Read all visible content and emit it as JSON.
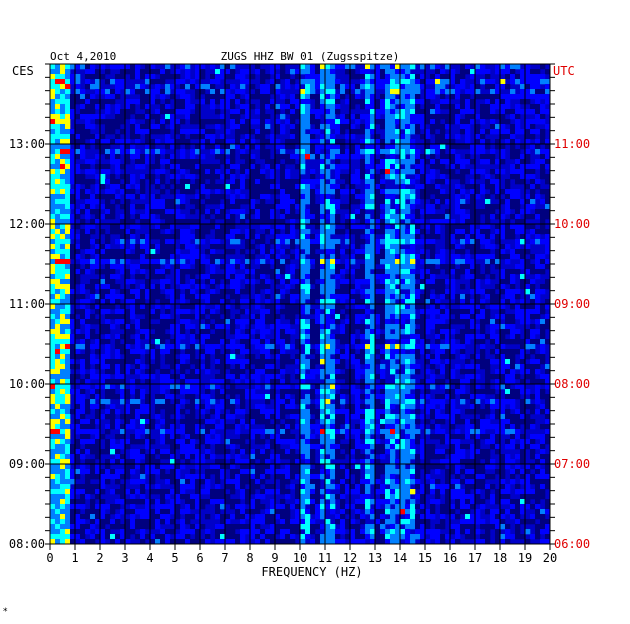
{
  "chart_data": {
    "type": "heatmap",
    "title": "ZUGS HHZ BW 01 (Zugsspitze)",
    "date": "Oct 4,2010",
    "xlabel": "FREQUENCY (HZ)",
    "left_timezone": "CES",
    "right_timezone": "UTC",
    "xlim": [
      0,
      20
    ],
    "x_ticks": [
      "0",
      "1",
      "2",
      "3",
      "4",
      "5",
      "6",
      "7",
      "8",
      "9",
      "10",
      "11",
      "12",
      "13",
      "14",
      "15",
      "16",
      "17",
      "18",
      "19",
      "20"
    ],
    "left_ticks": [
      "13:00",
      "12:00",
      "11:00",
      "10:00",
      "09:00",
      "08:00"
    ],
    "right_ticks": [
      "11:00",
      "10:00",
      "09:00",
      "08:00",
      "07:00",
      "06:00"
    ],
    "time_range_ces": [
      "08:00",
      "13:50"
    ],
    "colormap": [
      "#00007f",
      "#0000ff",
      "#0080ff",
      "#00ffff",
      "#ffff00",
      "#ff0000"
    ],
    "background_color": "#0000c8",
    "energy_bands_hz": [
      {
        "from": 0.0,
        "to": 0.8,
        "level": "high"
      },
      {
        "from": 10.0,
        "to": 10.3,
        "level": "medium"
      },
      {
        "from": 10.8,
        "to": 11.4,
        "level": "medium"
      },
      {
        "from": 12.7,
        "to": 13.0,
        "level": "medium"
      },
      {
        "from": 13.5,
        "to": 14.5,
        "level": "medium"
      }
    ]
  },
  "footer_mark": "*"
}
